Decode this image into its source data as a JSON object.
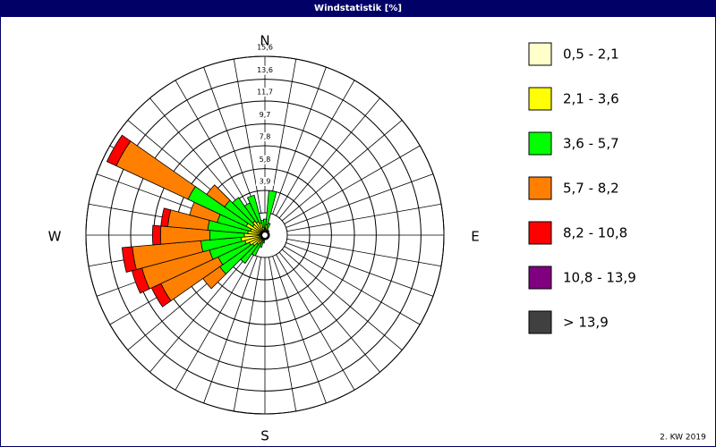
{
  "chart_data": {
    "type": "windrose",
    "title": "Windstatistik [%]",
    "footnote": "2. KW 2019",
    "directions": [
      "N",
      "E",
      "S",
      "W"
    ],
    "categories": [
      null,
      null,
      null,
      null,
      null,
      null,
      null,
      null,
      null,
      null,
      null,
      null,
      null,
      null,
      null,
      null,
      null,
      null,
      null,
      null,
      null,
      null,
      null,
      null,
      null,
      null,
      null,
      null,
      null,
      null,
      null,
      null,
      null,
      null,
      null,
      null
    ],
    "rlim": [
      0,
      15.6
    ],
    "rticks": [
      {
        "value": 3.9,
        "label": "3,9"
      },
      {
        "value": 5.8,
        "label": "5,8"
      },
      {
        "value": 7.8,
        "label": "7,8"
      },
      {
        "value": 9.7,
        "label": "9,7"
      },
      {
        "value": 11.7,
        "label": "11,7"
      },
      {
        "value": 13.6,
        "label": "13,6"
      },
      {
        "value": 15.6,
        "label": "15,6"
      }
    ],
    "legend": "right",
    "series": [
      {
        "name": "0,5 - 2,1",
        "color": "#ffffcc",
        "values": [
          0.2,
          0.3,
          0.1,
          0.1,
          0.1,
          0.1,
          0.1,
          0.1,
          0.1,
          0.1,
          0.1,
          0.1,
          0.1,
          0.1,
          0.1,
          0.1,
          0.1,
          0.1,
          0.1,
          0.1,
          0.1,
          0.2,
          0.2,
          0.3,
          0.3,
          0.3,
          0.3,
          0.3,
          0.3,
          0.3,
          0.3,
          0.3,
          0.3,
          0.3,
          0.3,
          0.2
        ]
      },
      {
        "name": "2,1 - 3,6",
        "color": "#ffff00",
        "values": [
          0.4,
          0.6,
          0.4,
          0.2,
          0.2,
          0.2,
          0.2,
          0.2,
          0.2,
          0.2,
          0.2,
          0.2,
          0.2,
          0.2,
          0.2,
          0.2,
          0.2,
          0.2,
          0.2,
          0.3,
          0.4,
          0.6,
          0.8,
          1.0,
          1.2,
          1.5,
          1.8,
          1.5,
          1.2,
          1.0,
          1.5,
          1.0,
          1.2,
          1.0,
          0.8,
          0.5
        ]
      },
      {
        "name": "3,6 - 5,7",
        "color": "#00ff00",
        "values": [
          0.8,
          3.0,
          0.6,
          0.2,
          0.2,
          0.1,
          0.1,
          0.1,
          0.1,
          0.1,
          0.1,
          0.1,
          0.1,
          0.1,
          0.1,
          0.1,
          0.1,
          0.1,
          0.1,
          0.3,
          0.6,
          1.2,
          2.0,
          3.5,
          3.0,
          3.2,
          3.5,
          3.0,
          3.5,
          3.0,
          5.6,
          3.0,
          2.5,
          1.8,
          2.5,
          0.6
        ]
      },
      {
        "name": "5,7 - 8,2",
        "color": "#ff8000",
        "values": [
          0,
          0,
          0,
          0,
          0,
          0,
          0,
          0,
          0,
          0,
          0,
          0,
          0,
          0,
          0,
          0,
          0,
          0,
          0,
          0,
          0,
          0,
          0,
          1.8,
          5.5,
          6.1,
          6.0,
          4.3,
          3.5,
          2.5,
          6.9,
          1.9,
          0,
          0,
          0,
          0
        ]
      },
      {
        "name": "8,2 - 10,8",
        "color": "#ff0000",
        "values": [
          0,
          0,
          0,
          0,
          0,
          0,
          0,
          0,
          0,
          0,
          0,
          0,
          0,
          0,
          0,
          0,
          0,
          0,
          0,
          0,
          0,
          0,
          0,
          0,
          0.9,
          0.9,
          0.9,
          0.7,
          0.6,
          0,
          0.9,
          0,
          0,
          0,
          0,
          0
        ]
      },
      {
        "name": "10,8 - 13,9",
        "color": "#800080",
        "values": [
          0,
          0,
          0,
          0,
          0,
          0,
          0,
          0,
          0,
          0,
          0,
          0,
          0,
          0,
          0,
          0,
          0,
          0,
          0,
          0,
          0,
          0,
          0,
          0,
          0,
          0,
          0,
          0,
          0,
          0,
          0,
          0,
          0,
          0,
          0,
          0
        ]
      },
      {
        "name": "> 13,9",
        "color": "#404040",
        "values": [
          0,
          0,
          0,
          0,
          0,
          0,
          0,
          0,
          0,
          0,
          0,
          0,
          0,
          0,
          0,
          0,
          0,
          0,
          0,
          0,
          0,
          0,
          0,
          0,
          0,
          0,
          0,
          0,
          0,
          0,
          0,
          0,
          0,
          0,
          0,
          0
        ]
      }
    ]
  }
}
